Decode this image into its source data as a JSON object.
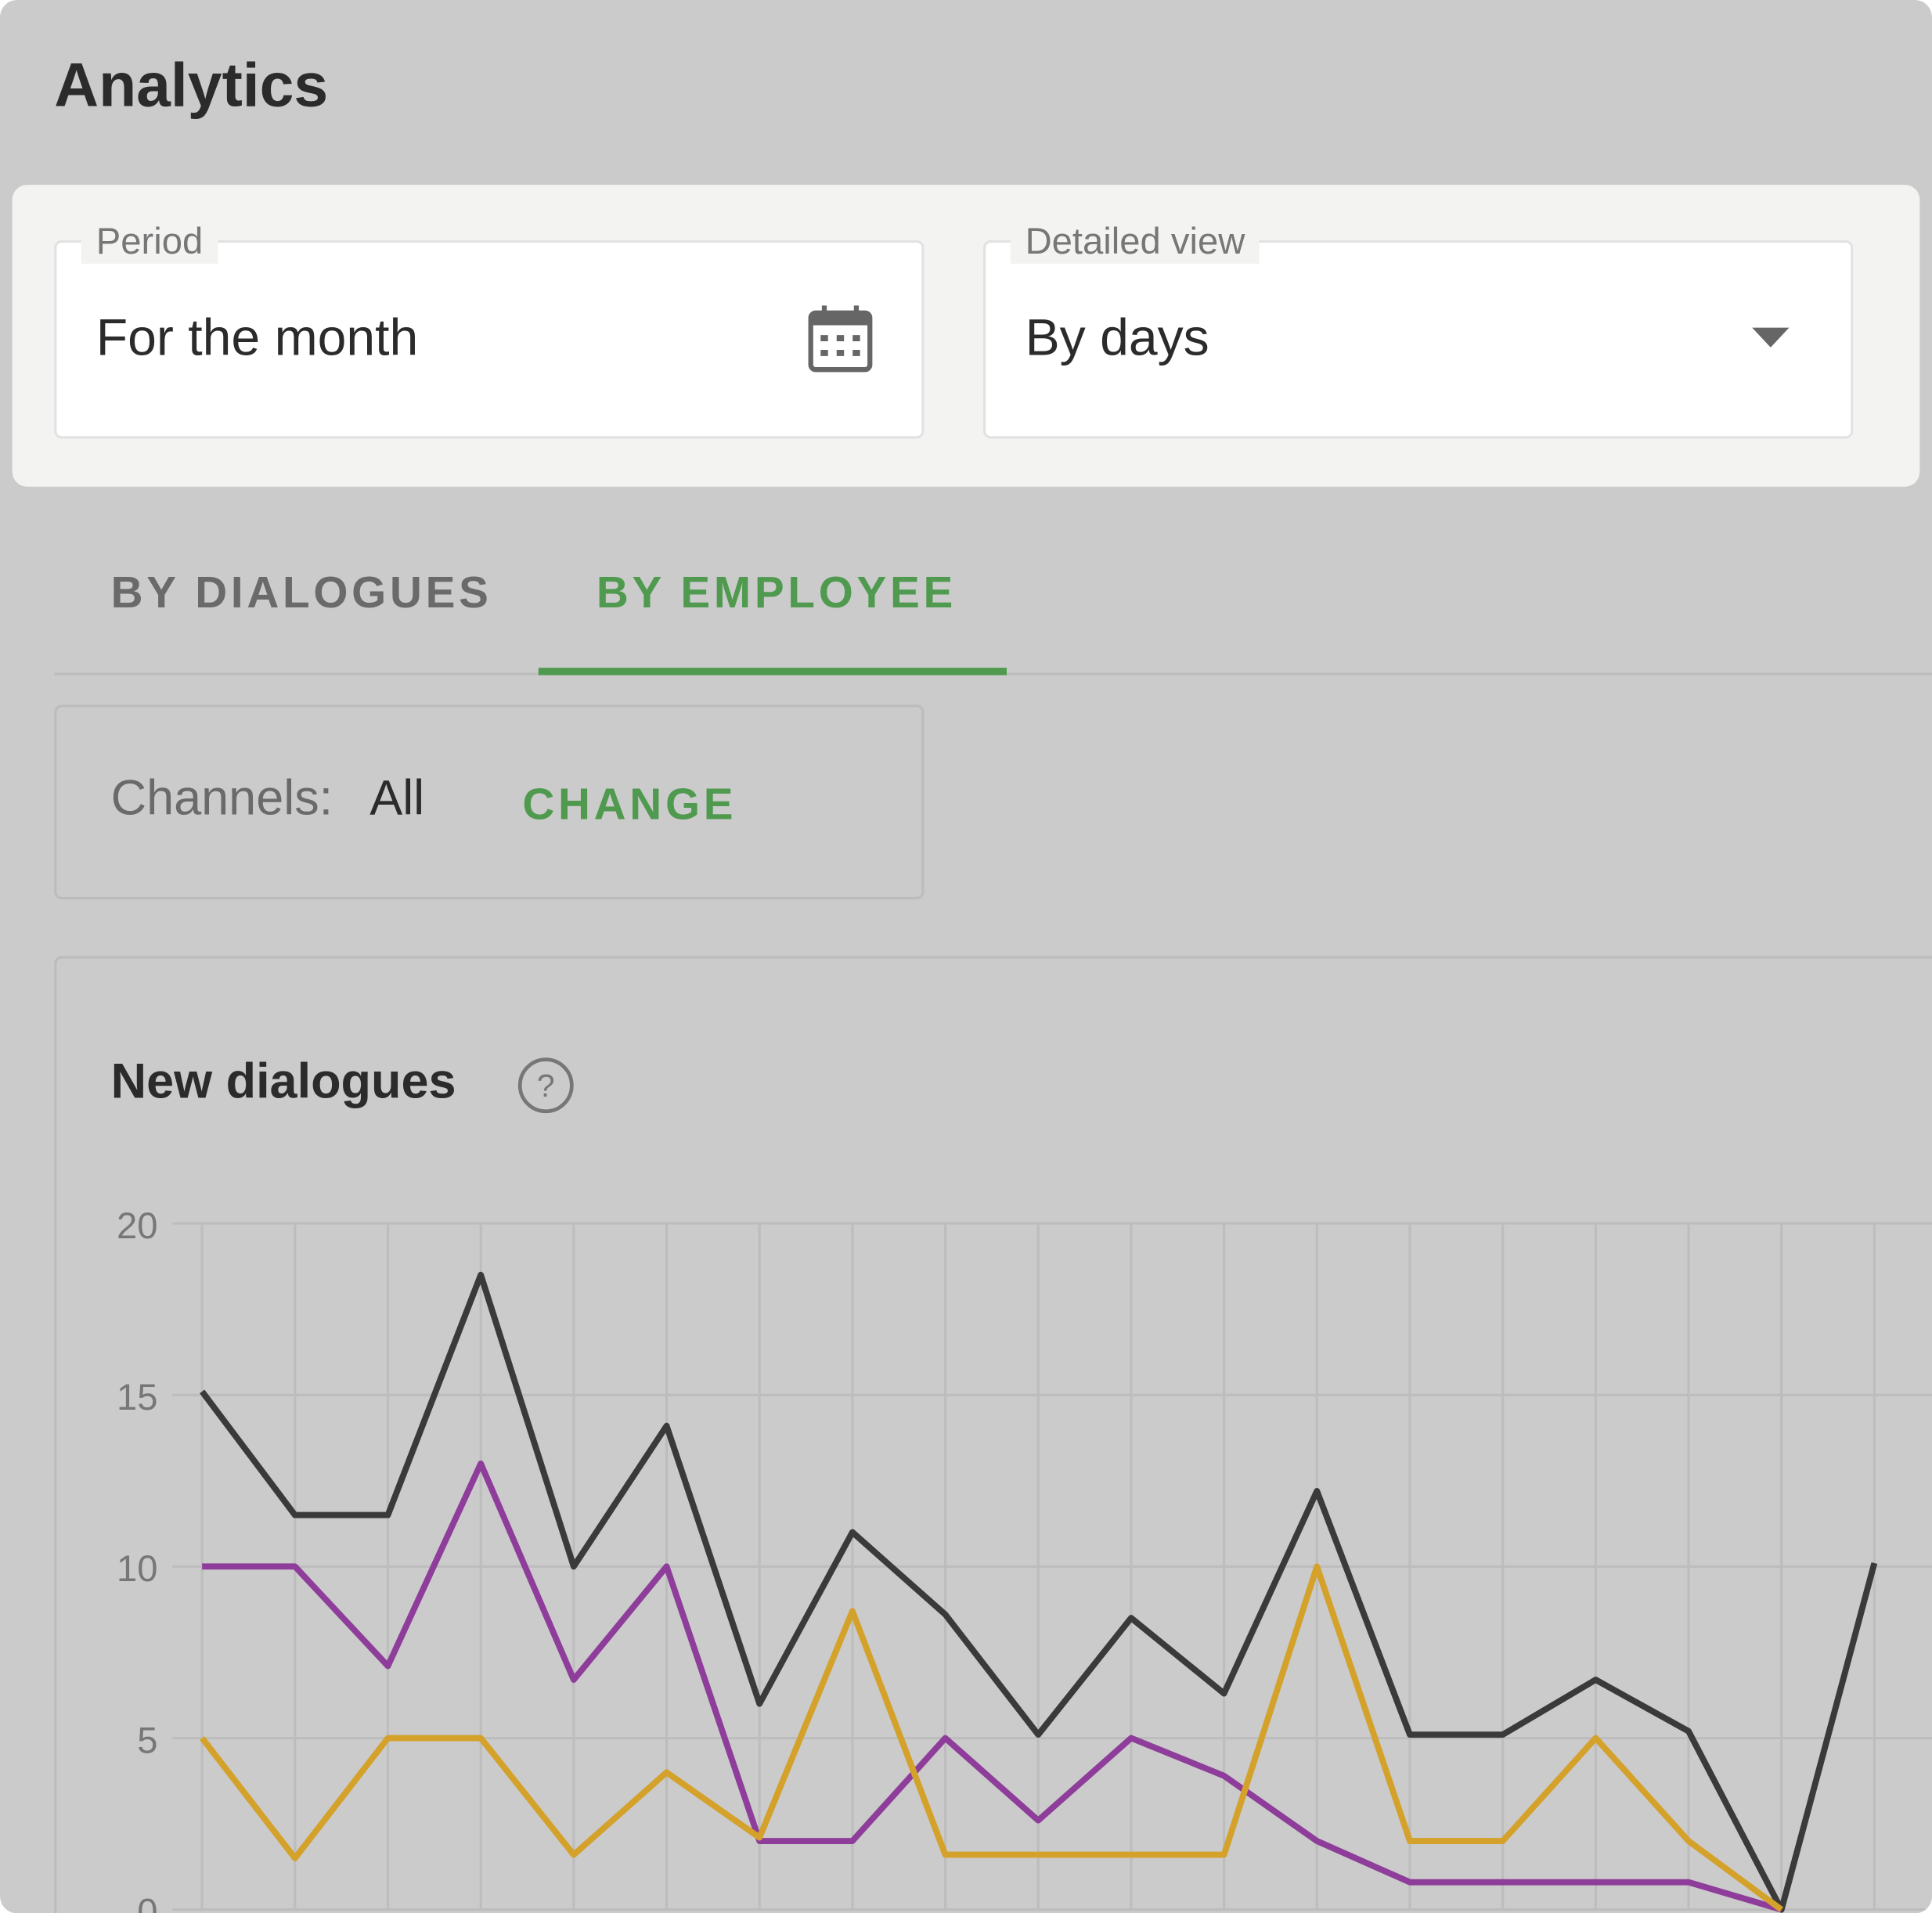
{
  "header": {
    "title": "Analytics"
  },
  "filters": {
    "period": {
      "label": "Period",
      "value": "For the month"
    },
    "detailed_view": {
      "label": "Detailed view",
      "value": "By days"
    }
  },
  "tabs": [
    "BY DIALOGUES",
    "BY EMPLOYEE"
  ],
  "channels": {
    "label": "Channels:",
    "value": "All",
    "action": "CHANGE"
  },
  "chart_data": {
    "type": "line",
    "title": "New dialogues",
    "categories": [
      null,
      null,
      null,
      null,
      null,
      null,
      null,
      null,
      null,
      null,
      null,
      null,
      null,
      null,
      null,
      null,
      null,
      null,
      null
    ],
    "series": [
      {
        "color": "#3a3a3a",
        "values": [
          15.1,
          11.5,
          11.5,
          18.5,
          10,
          14.1,
          6,
          11,
          8.6,
          5.1,
          8.5,
          6.3,
          12.2,
          5.1,
          5.1,
          6.7,
          5.2,
          0,
          10.1
        ]
      },
      {
        "color": "#8e3d9a",
        "values": [
          10,
          10,
          7.1,
          13,
          6.7,
          10,
          2,
          2,
          5,
          2.6,
          5,
          3.9,
          2,
          0.8,
          0.8,
          0.8,
          0.8,
          0,
          null
        ]
      },
      {
        "color": "#d4a22a",
        "values": [
          5,
          1.5,
          5,
          5,
          1.6,
          4,
          2.1,
          8.7,
          1.6,
          1.6,
          1.6,
          1.6,
          10,
          2,
          2,
          5,
          2,
          0,
          null
        ]
      }
    ],
    "ylim": [
      0,
      20
    ],
    "yticks": [
      0,
      5,
      10,
      15,
      20
    ],
    "grid": true
  }
}
